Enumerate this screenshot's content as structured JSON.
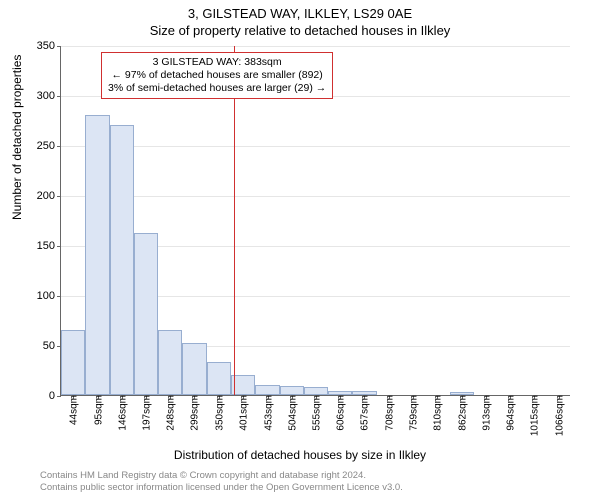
{
  "title_main": "3, GILSTEAD WAY, ILKLEY, LS29 0AE",
  "title_sub": "Size of property relative to detached houses in Ilkley",
  "ylabel": "Number of detached properties",
  "xlabel": "Distribution of detached houses by size in Ilkley",
  "footer1": "Contains HM Land Registry data © Crown copyright and database right 2024.",
  "footer2": "Contains public sector information licensed under the Open Government Licence v3.0.",
  "annotation": {
    "line1": "3 GILSTEAD WAY: 383sqm",
    "line2": "← 97% of detached houses are smaller (892)",
    "line3": "3% of semi-detached houses are larger (29) →"
  },
  "chart": {
    "type": "histogram",
    "ymax": 350,
    "ytick_step": 50,
    "bar_fill": "#dce5f4",
    "bar_border": "#98aed0",
    "grid_color": "#e6e6e6",
    "axis_color": "#666666",
    "marker_color": "#d03030",
    "marker_x": 383,
    "xmin": 18,
    "xmax": 1092,
    "xticks": [
      44,
      95,
      146,
      197,
      248,
      299,
      350,
      401,
      453,
      504,
      555,
      606,
      657,
      708,
      759,
      810,
      862,
      913,
      964,
      1015,
      1066
    ],
    "xtick_suffix": "sqm",
    "bars": [
      {
        "x": 44,
        "v": 65
      },
      {
        "x": 95,
        "v": 280
      },
      {
        "x": 146,
        "v": 270
      },
      {
        "x": 197,
        "v": 162
      },
      {
        "x": 248,
        "v": 65
      },
      {
        "x": 299,
        "v": 52
      },
      {
        "x": 350,
        "v": 33
      },
      {
        "x": 401,
        "v": 20
      },
      {
        "x": 453,
        "v": 10
      },
      {
        "x": 504,
        "v": 9
      },
      {
        "x": 555,
        "v": 8
      },
      {
        "x": 606,
        "v": 4
      },
      {
        "x": 657,
        "v": 4
      },
      {
        "x": 708,
        "v": 0
      },
      {
        "x": 759,
        "v": 0
      },
      {
        "x": 810,
        "v": 0
      },
      {
        "x": 862,
        "v": 3
      },
      {
        "x": 913,
        "v": 0
      },
      {
        "x": 964,
        "v": 0
      },
      {
        "x": 1015,
        "v": 0
      },
      {
        "x": 1066,
        "v": 0
      }
    ],
    "bar_width_units": 51
  },
  "style": {
    "title_fontsize": 13,
    "label_fontsize": 12,
    "tick_fontsize": 11,
    "xtick_fontsize": 10,
    "annot_fontsize": 10.5,
    "footer_fontsize": 9.5,
    "footer_color": "#888888",
    "background": "#ffffff"
  }
}
